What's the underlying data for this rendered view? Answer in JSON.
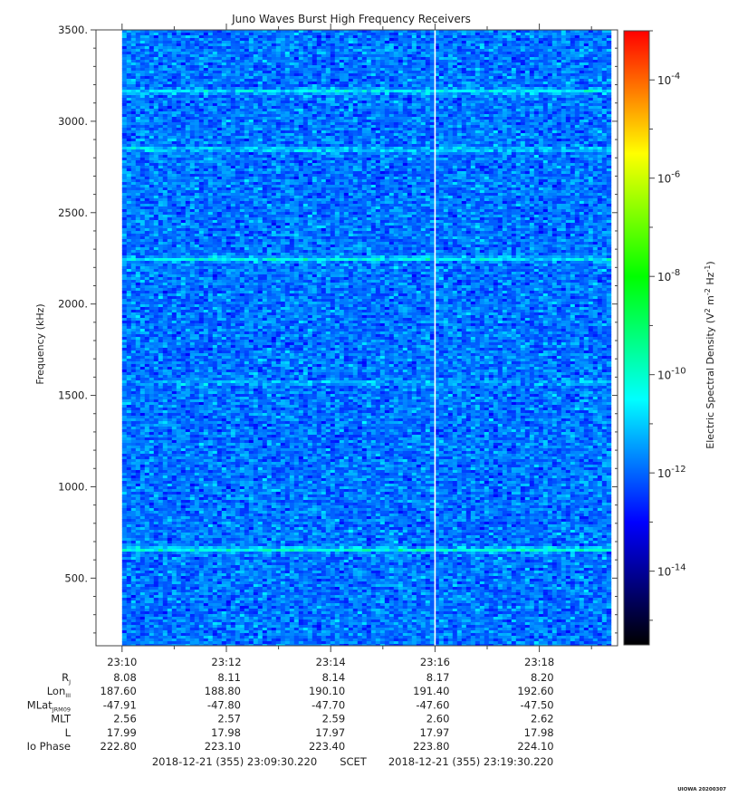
{
  "chart_data": {
    "type": "heatmap",
    "title": "Juno Waves Burst High Frequency Receivers",
    "ylabel": "Frequency (kHz)",
    "xlabel": "",
    "ylim": [
      130,
      3500
    ],
    "y_ticks": [
      {
        "value": 500,
        "label": "500."
      },
      {
        "value": 1000,
        "label": "1000."
      },
      {
        "value": 1500,
        "label": "1500."
      },
      {
        "value": 2000,
        "label": "2000."
      },
      {
        "value": 2500,
        "label": "2500."
      },
      {
        "value": 3000,
        "label": "3000."
      },
      {
        "value": 3500,
        "label": "3500."
      }
    ],
    "x_range_minutes": [
      "23:09:30",
      "23:19:30"
    ],
    "x_ticks": [
      "23:10",
      "23:12",
      "23:14",
      "23:16",
      "23:18"
    ],
    "data_extent_time": [
      "23:10:00",
      "23:19:20"
    ],
    "data_gap_time": "23:16:00",
    "background_level_exp": -12,
    "emission_bands": [
      {
        "freq_khz": 655,
        "level_exp": -10.3
      },
      {
        "freq_khz": 2245,
        "level_exp": -10.6
      },
      {
        "freq_khz": 2845,
        "level_exp": -11.0
      },
      {
        "freq_khz": 3165,
        "level_exp": -10.8
      },
      {
        "freq_khz": 1570,
        "level_exp": -11.4
      }
    ],
    "colorbar": {
      "label": "Electric Spectral Density (V² m⁻² Hz⁻¹)",
      "label_base": "Electric Spectral Density (V",
      "range_exp": [
        -15.5,
        -3
      ],
      "ticks": [
        {
          "exp": -14,
          "label": "-14"
        },
        {
          "exp": -12,
          "label": "-12"
        },
        {
          "exp": -10,
          "label": "-10"
        },
        {
          "exp": -8,
          "label": "-8"
        },
        {
          "exp": -6,
          "label": "-6"
        },
        {
          "exp": -4,
          "label": "-4"
        }
      ],
      "colors": [
        "#000000",
        "#00007f",
        "#0000ff",
        "#007fff",
        "#00ffff",
        "#00ff7f",
        "#00ff00",
        "#7fff00",
        "#ffff00",
        "#ff7f00",
        "#ff0000"
      ]
    },
    "ephemeris": {
      "rows": [
        {
          "label": "R",
          "sub": "J",
          "values": [
            "8.08",
            "8.11",
            "8.14",
            "8.17",
            "8.20"
          ]
        },
        {
          "label": "Lon",
          "sub": "III",
          "values": [
            "187.60",
            "188.80",
            "190.10",
            "191.40",
            "192.60"
          ]
        },
        {
          "label": "MLat",
          "sub": "JRM09",
          "values": [
            "-47.91",
            "-47.80",
            "-47.70",
            "-47.60",
            "-47.50"
          ]
        },
        {
          "label": "MLT",
          "sub": "",
          "values": [
            "2.56",
            "2.57",
            "2.59",
            "2.60",
            "2.62"
          ]
        },
        {
          "label": "L",
          "sub": "",
          "values": [
            "17.99",
            "17.98",
            "17.97",
            "17.97",
            "17.98"
          ]
        },
        {
          "label": "Io Phase",
          "sub": "",
          "values": [
            "222.80",
            "223.10",
            "223.40",
            "223.80",
            "224.10"
          ]
        }
      ]
    },
    "footer": {
      "start": "2018-12-21 (355) 23:09:30.220",
      "frame": "SCET",
      "end": "2018-12-21 (355) 23:19:30.220"
    },
    "credit": "UIOWA 20200307"
  }
}
